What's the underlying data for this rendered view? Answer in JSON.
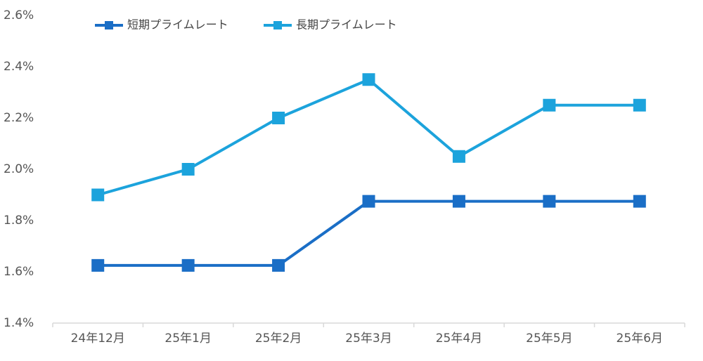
{
  "chart_data": {
    "type": "line",
    "categories": [
      "24年12月",
      "25年1月",
      "25年2月",
      "25年3月",
      "25年4月",
      "25年5月",
      "25年6月"
    ],
    "series": [
      {
        "name": "短期プライムレート",
        "color": "#1a6ec6",
        "values": [
          1.625,
          1.625,
          1.625,
          1.875,
          1.875,
          1.875,
          1.875
        ]
      },
      {
        "name": "長期プライムレート",
        "color": "#1ca3dc",
        "values": [
          1.9,
          2.0,
          2.2,
          2.35,
          2.05,
          2.25,
          2.25
        ]
      }
    ],
    "ylim": [
      1.4,
      2.6
    ],
    "yticks": [
      {
        "value": 1.4,
        "label": "1.4%"
      },
      {
        "value": 1.6,
        "label": "1.6%"
      },
      {
        "value": 1.8,
        "label": "1.8%"
      },
      {
        "value": 2.0,
        "label": "2.0%"
      },
      {
        "value": 2.2,
        "label": "2.2%"
      },
      {
        "value": 2.4,
        "label": "2.4%"
      },
      {
        "value": 2.6,
        "label": "2.6%"
      }
    ],
    "grid": false,
    "legend": "top"
  }
}
